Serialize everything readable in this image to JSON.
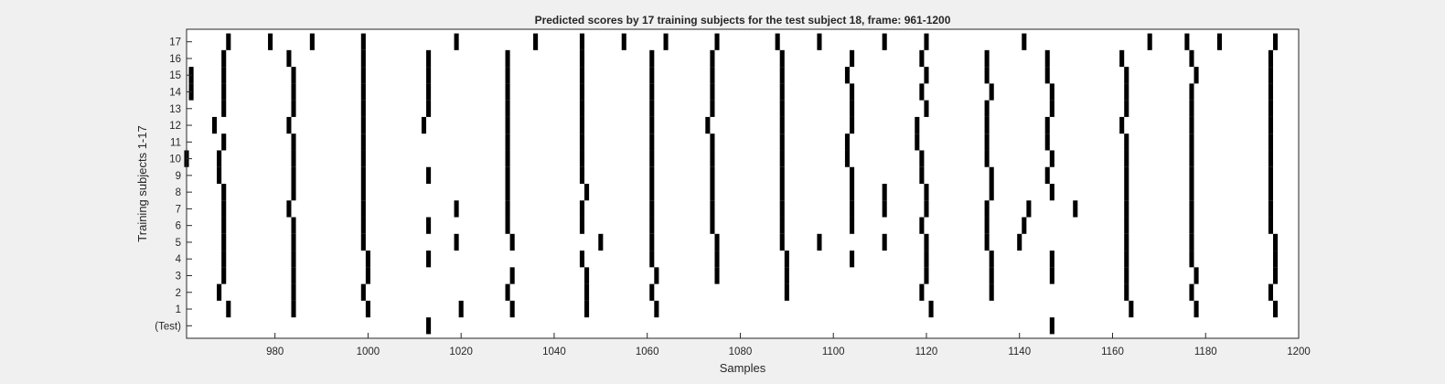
{
  "chart_data": {
    "type": "raster",
    "title": "Predicted scores by 17 training subjects for the test subject 18, frame: 961-1200",
    "xlabel": "Samples",
    "ylabel": "Training subjects 1-17",
    "xlim": [
      961,
      1200
    ],
    "x_ticks": [
      980,
      1000,
      1020,
      1040,
      1060,
      1080,
      1100,
      1120,
      1140,
      1160,
      1180,
      1200
    ],
    "y_tick_labels": [
      "(Test)",
      "1",
      "2",
      "3",
      "4",
      "5",
      "6",
      "7",
      "8",
      "9",
      "10",
      "11",
      "12",
      "13",
      "14",
      "15",
      "16",
      "17"
    ],
    "mark_color": "#000000",
    "background_color": "#ffffff",
    "rows": [
      {
        "label": "(Test)",
        "events": [
          1013,
          1147
        ]
      },
      {
        "label": "1",
        "events": [
          970,
          984,
          1000,
          1020,
          1031,
          1047,
          1062,
          1121,
          1164,
          1178,
          1195
        ]
      },
      {
        "label": "2",
        "events": [
          968,
          984,
          999,
          1030,
          1047,
          1061,
          1090,
          1119,
          1134,
          1163,
          1177,
          1194
        ]
      },
      {
        "label": "3",
        "events": [
          969,
          984,
          1000,
          1031,
          1047,
          1062,
          1075,
          1090,
          1120,
          1134,
          1147,
          1163,
          1178,
          1195
        ]
      },
      {
        "label": "4",
        "events": [
          969,
          984,
          1000,
          1013,
          1046,
          1061,
          1075,
          1090,
          1104,
          1120,
          1134,
          1147,
          1163,
          1177,
          1195
        ]
      },
      {
        "label": "5",
        "events": [
          969,
          984,
          999,
          1019,
          1031,
          1050,
          1061,
          1075,
          1089,
          1097,
          1111,
          1120,
          1133,
          1140,
          1163,
          1177,
          1195
        ]
      },
      {
        "label": "6",
        "events": [
          969,
          984,
          999,
          1013,
          1030,
          1046,
          1061,
          1074,
          1089,
          1104,
          1119,
          1133,
          1141,
          1163,
          1177,
          1194
        ]
      },
      {
        "label": "7",
        "events": [
          969,
          983,
          999,
          1019,
          1030,
          1046,
          1061,
          1074,
          1089,
          1104,
          1111,
          1120,
          1133,
          1142,
          1152,
          1163,
          1177,
          1194
        ]
      },
      {
        "label": "8",
        "events": [
          969,
          984,
          999,
          1030,
          1047,
          1061,
          1074,
          1089,
          1104,
          1111,
          1120,
          1134,
          1147,
          1163,
          1177,
          1194
        ]
      },
      {
        "label": "9",
        "events": [
          968,
          984,
          999,
          1013,
          1030,
          1046,
          1061,
          1074,
          1089,
          1104,
          1119,
          1134,
          1146,
          1163,
          1177,
          1194
        ]
      },
      {
        "label": "10",
        "events": [
          961,
          968,
          984,
          999,
          1030,
          1046,
          1061,
          1074,
          1089,
          1103,
          1119,
          1133,
          1147,
          1163,
          1177,
          1194
        ]
      },
      {
        "label": "11",
        "events": [
          969,
          984,
          999,
          1030,
          1046,
          1061,
          1074,
          1089,
          1103,
          1118,
          1133,
          1146,
          1163,
          1177,
          1194
        ]
      },
      {
        "label": "12",
        "events": [
          967,
          983,
          999,
          1012,
          1030,
          1046,
          1061,
          1073,
          1089,
          1104,
          1118,
          1133,
          1146,
          1162,
          1177,
          1194
        ]
      },
      {
        "label": "13",
        "events": [
          969,
          984,
          999,
          1013,
          1030,
          1046,
          1061,
          1074,
          1089,
          1104,
          1120,
          1133,
          1147,
          1163,
          1177,
          1194
        ]
      },
      {
        "label": "14",
        "events": [
          962,
          969,
          984,
          999,
          1013,
          1030,
          1046,
          1061,
          1074,
          1089,
          1104,
          1119,
          1134,
          1147,
          1163,
          1177,
          1194
        ]
      },
      {
        "label": "15",
        "events": [
          962,
          969,
          984,
          999,
          1013,
          1030,
          1046,
          1061,
          1074,
          1089,
          1103,
          1120,
          1133,
          1146,
          1163,
          1178,
          1194
        ]
      },
      {
        "label": "16",
        "events": [
          969,
          983,
          999,
          1013,
          1030,
          1046,
          1061,
          1074,
          1089,
          1104,
          1119,
          1133,
          1146,
          1162,
          1177,
          1194
        ]
      },
      {
        "label": "17",
        "events": [
          970,
          979,
          988,
          999,
          1019,
          1036,
          1046,
          1055,
          1064,
          1075,
          1088,
          1097,
          1111,
          1120,
          1141,
          1168,
          1176,
          1183,
          1195
        ]
      }
    ]
  }
}
